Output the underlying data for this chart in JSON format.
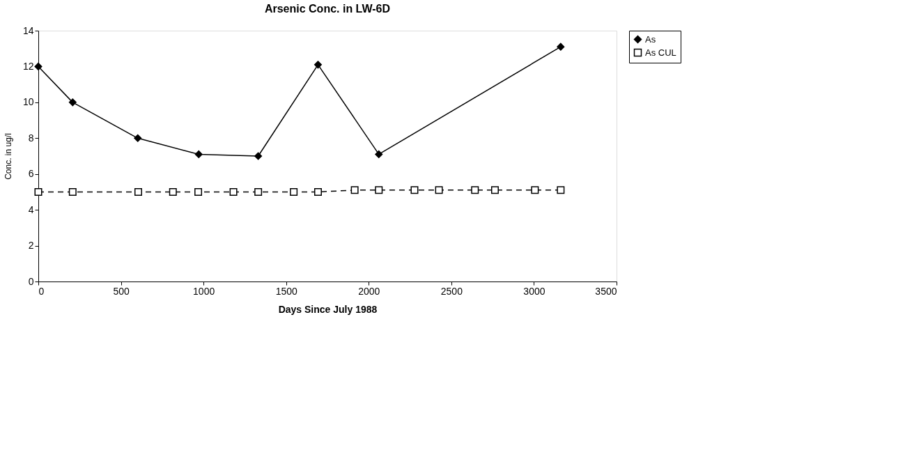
{
  "chart_data": {
    "type": "line",
    "title": "Arsenic Conc. in LW-6D",
    "xlabel": "Days Since July 1988",
    "ylabel": "Conc. in ug/l",
    "xlim": [
      0,
      3500
    ],
    "xticks": [
      0,
      500,
      1000,
      1500,
      2000,
      2500,
      3000,
      3500
    ],
    "ylim": [
      0,
      14
    ],
    "yticks": [
      0,
      2,
      4,
      6,
      8,
      10,
      12,
      14
    ],
    "grid": false,
    "legend": "right",
    "series": [
      {
        "name": "As",
        "color": "#000000",
        "marker": "diamond",
        "line_style": "solid",
        "x": [
          0,
          208,
          602,
          971,
          1331,
          1693,
          2061,
          3162
        ],
        "values": [
          12,
          10,
          8,
          7.1,
          7,
          12.1,
          7.1,
          13.1
        ]
      },
      {
        "name": "As CUL",
        "color": "#000000",
        "marker": "square",
        "line_style": "dashed",
        "x": [
          0,
          208,
          605,
          815,
          968,
          1181,
          1331,
          1546,
          1693,
          1915,
          2061,
          2277,
          2425,
          2643,
          2764,
          3006,
          3162
        ],
        "values": [
          5,
          5,
          5,
          5,
          5,
          5,
          5,
          5,
          5,
          5.1,
          5.1,
          5.1,
          5.1,
          5.1,
          5.1,
          5.1,
          5.1
        ]
      }
    ]
  }
}
